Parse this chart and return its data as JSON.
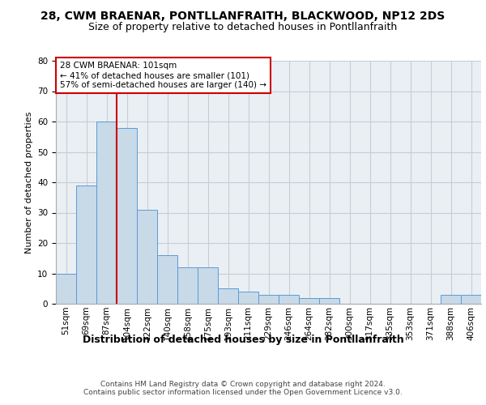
{
  "title1": "28, CWM BRAENAR, PONTLLANFRAITH, BLACKWOOD, NP12 2DS",
  "title2": "Size of property relative to detached houses in Pontllanfraith",
  "xlabel": "Distribution of detached houses by size in Pontllanfraith",
  "ylabel": "Number of detached properties",
  "footnote": "Contains HM Land Registry data © Crown copyright and database right 2024.\nContains public sector information licensed under the Open Government Licence v3.0.",
  "categories": [
    "51sqm",
    "69sqm",
    "87sqm",
    "104sqm",
    "122sqm",
    "140sqm",
    "158sqm",
    "175sqm",
    "193sqm",
    "211sqm",
    "229sqm",
    "246sqm",
    "264sqm",
    "282sqm",
    "300sqm",
    "317sqm",
    "335sqm",
    "353sqm",
    "371sqm",
    "388sqm",
    "406sqm"
  ],
  "values": [
    10,
    39,
    60,
    58,
    31,
    16,
    12,
    12,
    5,
    4,
    3,
    3,
    2,
    2,
    0,
    0,
    0,
    0,
    0,
    3,
    3
  ],
  "bar_color": "#c8d9e8",
  "bar_edge_color": "#5b9bd5",
  "vline_x": 3,
  "vline_color": "#cc0000",
  "annotation_line1": "28 CWM BRAENAR: 101sqm",
  "annotation_line2": "← 41% of detached houses are smaller (101)",
  "annotation_line3": "57% of semi-detached houses are larger (140) →",
  "annotation_box_color": "#ffffff",
  "annotation_box_edge": "#cc0000",
  "ylim": [
    0,
    80
  ],
  "yticks": [
    0,
    10,
    20,
    30,
    40,
    50,
    60,
    70,
    80
  ],
  "grid_color": "#c8cdd4",
  "bg_color": "#eaeff4",
  "title1_fontsize": 10,
  "title2_fontsize": 9,
  "xlabel_fontsize": 9,
  "ylabel_fontsize": 8,
  "tick_fontsize": 7.5,
  "annot_fontsize": 7.5
}
